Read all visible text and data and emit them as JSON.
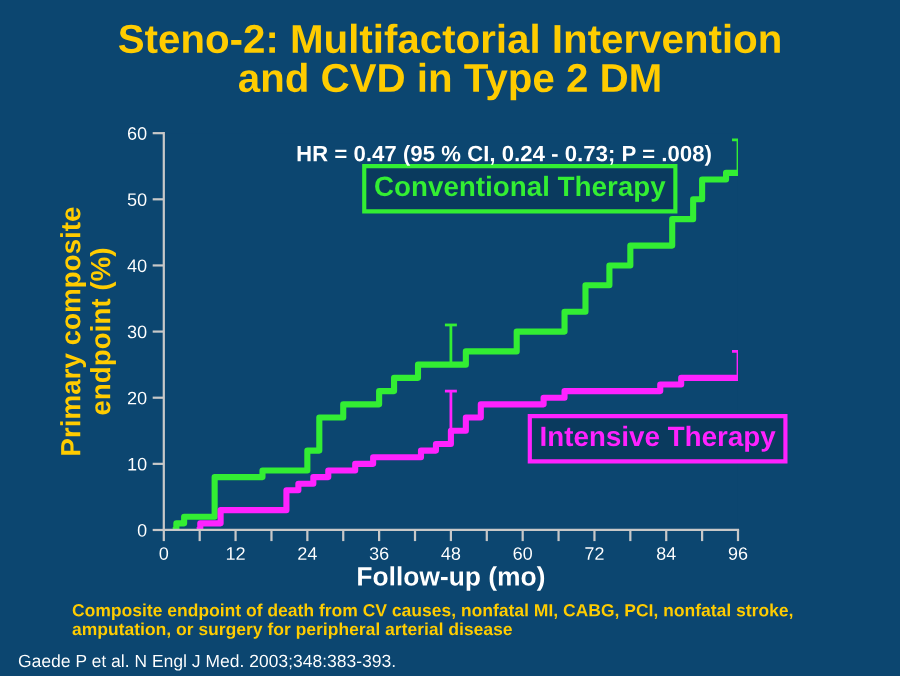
{
  "chart_data": {
    "type": "step",
    "title": "Steno-2: Multifactorial Intervention\nand CVD in Type 2 DM",
    "xlabel": "Follow-up (mo)",
    "ylabel": "Primary composite\nendpoint (%)",
    "annotations": [
      "HR = 0.47 (95 % CI, 0.24 - 0.73; P = .008)",
      "Composite endpoint of death from CV causes, nonfatal MI, CABG, PCI, nonfatal stroke,\namputation, or surgery for peripheral arterial disease",
      "Gaede P et al. N Engl J Med. 2003;348:383-393."
    ],
    "xlim": [
      0,
      96
    ],
    "ylim": [
      0,
      60
    ],
    "xticks": [
      0,
      {
        "value": 6,
        "label": null
      },
      12,
      {
        "value": 18,
        "label": null
      },
      24,
      {
        "value": 30,
        "label": null
      },
      36,
      {
        "value": 42,
        "label": null
      },
      48,
      {
        "value": 54,
        "label": null
      },
      60,
      {
        "value": 66,
        "label": null
      },
      72,
      {
        "value": 78,
        "label": null
      },
      84,
      {
        "value": 90,
        "label": null
      },
      96
    ],
    "yticks": [
      0,
      10,
      20,
      30,
      40,
      50,
      60
    ],
    "grid": false,
    "series": [
      {
        "name": "Conventional Therapy",
        "color": "#33ee33",
        "x": [
          2,
          2.1,
          3.4,
          8.5,
          16.5,
          24,
          26,
          30,
          36,
          38.5,
          42.5,
          48,
          50.5,
          59,
          67,
          70.5,
          74.5,
          78,
          85,
          88.5,
          90,
          94,
          96
        ],
        "values": [
          0,
          1,
          2,
          8,
          9,
          12,
          17,
          19,
          21,
          23,
          25,
          25,
          27,
          30,
          33,
          37,
          40,
          43,
          47,
          50,
          53,
          54,
          54
        ],
        "errors": [
          null,
          null,
          null,
          null,
          null,
          null,
          null,
          null,
          null,
          null,
          null,
          [
            25,
            31
          ],
          null,
          null,
          null,
          null,
          null,
          null,
          null,
          null,
          null,
          null,
          [
            54,
            59
          ]
        ]
      },
      {
        "name": "Intensive Therapy",
        "color": "#ff22ff",
        "x": [
          6,
          6.1,
          9.5,
          20.5,
          22.5,
          25,
          27.5,
          32,
          35,
          43,
          45.5,
          48,
          50.5,
          53,
          63.5,
          67,
          83,
          86.5,
          96
        ],
        "values": [
          0,
          1,
          3,
          6,
          7,
          8,
          9,
          10,
          11,
          12,
          13,
          15,
          17,
          19,
          20,
          21,
          22,
          23,
          23
        ],
        "errors": [
          null,
          null,
          null,
          null,
          null,
          null,
          null,
          null,
          null,
          null,
          null,
          [
            15,
            21
          ],
          null,
          null,
          null,
          null,
          null,
          null,
          [
            23,
            27
          ]
        ]
      }
    ]
  }
}
